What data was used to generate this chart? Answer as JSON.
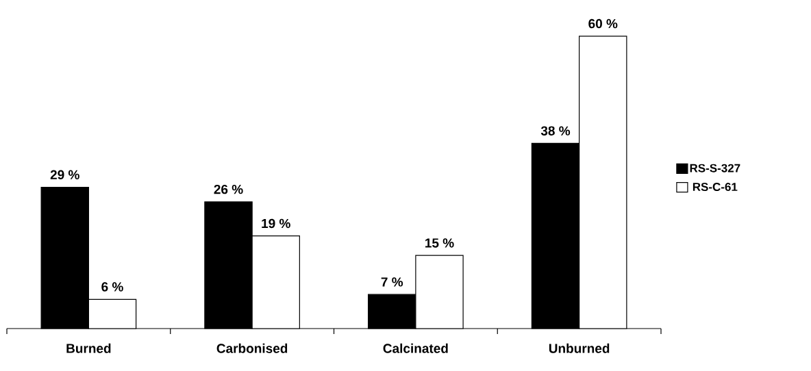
{
  "chart_data": {
    "type": "bar",
    "categories": [
      "Burned",
      "Carbonised",
      "Calcinated",
      "Unburned"
    ],
    "series": [
      {
        "name": "RS-S-327",
        "color": "#000000",
        "values": [
          29,
          26,
          7,
          38
        ],
        "value_labels": [
          "29 %",
          "26 %",
          "7 %",
          "38 %"
        ]
      },
      {
        "name": "RS-C-61",
        "color": "#ffffff",
        "values": [
          6,
          19,
          15,
          60
        ],
        "value_labels": [
          "6 %",
          "19 %",
          "15 %",
          "60 %"
        ]
      }
    ],
    "legend": "right",
    "grid": false
  }
}
